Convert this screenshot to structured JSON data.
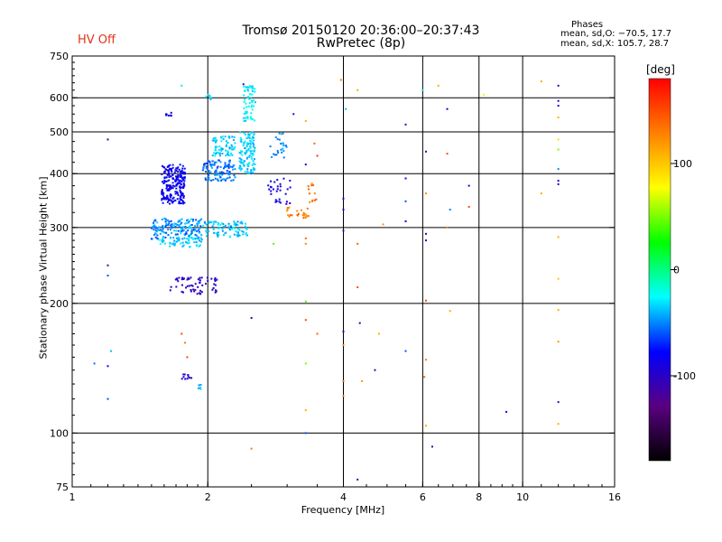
{
  "header": {
    "title_line1": "Tromsø 20150120 20:36:00–20:37:43",
    "title_line2": "RwPretec (8p)",
    "status": "HV Off",
    "status_color": "#e0331a"
  },
  "phase_box": {
    "title": "Phases",
    "line_o": "mean, sd,O: −70.5, 17.7",
    "line_x": "mean, sd,X: 105.7, 28.7"
  },
  "chart_data": {
    "type": "scatter",
    "xlabel": "Frequency [MHz]",
    "ylabel": "Stationary phase Virtual Height [km]",
    "xscale": "log",
    "yscale": "log",
    "xlim": [
      1,
      16
    ],
    "ylim": [
      75,
      750
    ],
    "x_ticks": [
      1,
      2,
      4,
      6,
      8,
      10,
      16
    ],
    "y_ticks": [
      75,
      100,
      200,
      300,
      400,
      500,
      600,
      750
    ],
    "x_grid": [
      2,
      4,
      6,
      8,
      10
    ],
    "y_grid": [
      100,
      200,
      300,
      400,
      500,
      600
    ],
    "colorbar": {
      "unit": "[deg]",
      "range": [
        -180,
        180
      ],
      "ticks": [
        100,
        0,
        -100
      ],
      "colormap": [
        "#000000",
        "#5a0080",
        "#0000ff",
        "#00ffff",
        "#00ff00",
        "#ffff00",
        "#ff8000",
        "#ff0000"
      ]
    },
    "clusters": [
      {
        "x": [
          1.58,
          1.78
        ],
        "y": [
          340,
          420
        ],
        "phase": [
          -95,
          -70
        ],
        "n": 220
      },
      {
        "x": [
          1.5,
          1.95
        ],
        "y": [
          282,
          315
        ],
        "phase": [
          -65,
          -30
        ],
        "n": 160
      },
      {
        "x": [
          1.95,
          2.3
        ],
        "y": [
          385,
          430
        ],
        "phase": [
          -70,
          -40
        ],
        "n": 110
      },
      {
        "x": [
          2.05,
          2.3
        ],
        "y": [
          440,
          490
        ],
        "phase": [
          -45,
          -25
        ],
        "n": 70
      },
      {
        "x": [
          2.35,
          2.55
        ],
        "y": [
          400,
          500
        ],
        "phase": [
          -45,
          -25
        ],
        "n": 120
      },
      {
        "x": [
          2.4,
          2.55
        ],
        "y": [
          530,
          640
        ],
        "phase": [
          -40,
          -20
        ],
        "n": 60
      },
      {
        "x": [
          1.95,
          2.45
        ],
        "y": [
          285,
          310
        ],
        "phase": [
          -50,
          -25
        ],
        "n": 90
      },
      {
        "x": [
          1.55,
          1.95
        ],
        "y": [
          270,
          285
        ],
        "phase": [
          -45,
          -25
        ],
        "n": 60
      },
      {
        "x": [
          1.65,
          2.1
        ],
        "y": [
          210,
          230
        ],
        "phase": [
          -110,
          -90
        ],
        "n": 60
      },
      {
        "x": [
          2.7,
          3.1
        ],
        "y": [
          340,
          390
        ],
        "phase": [
          -100,
          -80
        ],
        "n": 30
      },
      {
        "x": [
          2.75,
          3.0
        ],
        "y": [
          430,
          500
        ],
        "phase": [
          -60,
          -40
        ],
        "n": 25
      },
      {
        "x": [
          3.0,
          3.35
        ],
        "y": [
          315,
          335
        ],
        "phase": [
          120,
          140
        ],
        "n": 25
      },
      {
        "x": [
          3.3,
          3.5
        ],
        "y": [
          340,
          380
        ],
        "phase": [
          125,
          145
        ],
        "n": 12
      },
      {
        "x": [
          1.75,
          1.85
        ],
        "y": [
          133,
          137
        ],
        "phase": [
          -110,
          -90
        ],
        "n": 10
      },
      {
        "x": [
          1.9,
          1.95
        ],
        "y": [
          126,
          130
        ],
        "phase": [
          -50,
          -30
        ],
        "n": 5
      },
      {
        "x": [
          1.6,
          1.7
        ],
        "y": [
          545,
          555
        ],
        "phase": [
          -95,
          -80
        ],
        "n": 8
      },
      {
        "x": [
          1.98,
          2.1
        ],
        "y": [
          590,
          610
        ],
        "phase": [
          -45,
          -25
        ],
        "n": 6
      }
    ],
    "points": [
      {
        "x": 1.2,
        "y": 480,
        "phase": -110
      },
      {
        "x": 1.2,
        "y": 245,
        "phase": -115
      },
      {
        "x": 1.2,
        "y": 232,
        "phase": -60
      },
      {
        "x": 1.22,
        "y": 155,
        "phase": -40
      },
      {
        "x": 1.12,
        "y": 145,
        "phase": -55
      },
      {
        "x": 1.2,
        "y": 143,
        "phase": -90
      },
      {
        "x": 1.2,
        "y": 120,
        "phase": -60
      },
      {
        "x": 1.75,
        "y": 640,
        "phase": -30
      },
      {
        "x": 2.4,
        "y": 645,
        "phase": -100
      },
      {
        "x": 2.5,
        "y": 185,
        "phase": -110
      },
      {
        "x": 2.5,
        "y": 92,
        "phase": 130
      },
      {
        "x": 1.75,
        "y": 170,
        "phase": 150
      },
      {
        "x": 1.78,
        "y": 162,
        "phase": 130
      },
      {
        "x": 1.8,
        "y": 150,
        "phase": 150
      },
      {
        "x": 2.8,
        "y": 275,
        "phase": 40
      },
      {
        "x": 3.1,
        "y": 550,
        "phase": -110
      },
      {
        "x": 3.3,
        "y": 530,
        "phase": 110
      },
      {
        "x": 3.45,
        "y": 470,
        "phase": 140
      },
      {
        "x": 3.5,
        "y": 440,
        "phase": 160
      },
      {
        "x": 3.3,
        "y": 420,
        "phase": -100
      },
      {
        "x": 3.3,
        "y": 283,
        "phase": 140
      },
      {
        "x": 3.3,
        "y": 275,
        "phase": 125
      },
      {
        "x": 3.3,
        "y": 202,
        "phase": 40
      },
      {
        "x": 3.3,
        "y": 183,
        "phase": 150
      },
      {
        "x": 3.5,
        "y": 170,
        "phase": 140
      },
      {
        "x": 3.3,
        "y": 145,
        "phase": 50
      },
      {
        "x": 3.3,
        "y": 113,
        "phase": 110
      },
      {
        "x": 3.3,
        "y": 100,
        "phase": -60
      },
      {
        "x": 3.95,
        "y": 660,
        "phase": 130
      },
      {
        "x": 4.05,
        "y": 565,
        "phase": -40
      },
      {
        "x": 4.3,
        "y": 625,
        "phase": 110
      },
      {
        "x": 4.0,
        "y": 350,
        "phase": -90
      },
      {
        "x": 4.0,
        "y": 330,
        "phase": -80
      },
      {
        "x": 4.0,
        "y": 295,
        "phase": -110
      },
      {
        "x": 4.3,
        "y": 275,
        "phase": 140
      },
      {
        "x": 4.3,
        "y": 218,
        "phase": 150
      },
      {
        "x": 4.0,
        "y": 172,
        "phase": -100
      },
      {
        "x": 4.35,
        "y": 180,
        "phase": -110
      },
      {
        "x": 4.8,
        "y": 170,
        "phase": 110
      },
      {
        "x": 4.0,
        "y": 160,
        "phase": 130
      },
      {
        "x": 4.0,
        "y": 132,
        "phase": 140
      },
      {
        "x": 4.4,
        "y": 132,
        "phase": 120
      },
      {
        "x": 4.7,
        "y": 140,
        "phase": -120
      },
      {
        "x": 4.3,
        "y": 78,
        "phase": -110
      },
      {
        "x": 4.0,
        "y": 122,
        "phase": 130
      },
      {
        "x": 4.9,
        "y": 305,
        "phase": 120
      },
      {
        "x": 5.5,
        "y": 520,
        "phase": -110
      },
      {
        "x": 5.5,
        "y": 390,
        "phase": -90
      },
      {
        "x": 5.5,
        "y": 345,
        "phase": -60
      },
      {
        "x": 5.5,
        "y": 310,
        "phase": -80
      },
      {
        "x": 5.5,
        "y": 155,
        "phase": -60
      },
      {
        "x": 6.0,
        "y": 625,
        "phase": -30
      },
      {
        "x": 6.1,
        "y": 450,
        "phase": -110
      },
      {
        "x": 6.1,
        "y": 360,
        "phase": 120
      },
      {
        "x": 6.1,
        "y": 290,
        "phase": -100
      },
      {
        "x": 6.1,
        "y": 280,
        "phase": -90
      },
      {
        "x": 6.1,
        "y": 203,
        "phase": 150
      },
      {
        "x": 6.1,
        "y": 148,
        "phase": 130
      },
      {
        "x": 6.05,
        "y": 135,
        "phase": 140
      },
      {
        "x": 6.1,
        "y": 104,
        "phase": 110
      },
      {
        "x": 6.3,
        "y": 93,
        "phase": -110
      },
      {
        "x": 6.5,
        "y": 640,
        "phase": 110
      },
      {
        "x": 6.8,
        "y": 565,
        "phase": -90
      },
      {
        "x": 6.8,
        "y": 445,
        "phase": 150
      },
      {
        "x": 6.9,
        "y": 330,
        "phase": -50
      },
      {
        "x": 6.8,
        "y": 300,
        "phase": 130
      },
      {
        "x": 6.9,
        "y": 192,
        "phase": 110
      },
      {
        "x": 7.6,
        "y": 375,
        "phase": -90
      },
      {
        "x": 7.6,
        "y": 335,
        "phase": 150
      },
      {
        "x": 8.2,
        "y": 610,
        "phase": 70
      },
      {
        "x": 9.2,
        "y": 112,
        "phase": -90
      },
      {
        "x": 11.0,
        "y": 655,
        "phase": 110
      },
      {
        "x": 11.0,
        "y": 360,
        "phase": 110
      },
      {
        "x": 12.0,
        "y": 640,
        "phase": -110
      },
      {
        "x": 12.0,
        "y": 590,
        "phase": -90
      },
      {
        "x": 12.0,
        "y": 575,
        "phase": -100
      },
      {
        "x": 12.0,
        "y": 540,
        "phase": 110
      },
      {
        "x": 12.0,
        "y": 480,
        "phase": 90
      },
      {
        "x": 12.0,
        "y": 455,
        "phase": 50
      },
      {
        "x": 12.0,
        "y": 410,
        "phase": -50
      },
      {
        "x": 12.0,
        "y": 385,
        "phase": -90
      },
      {
        "x": 12.0,
        "y": 378,
        "phase": -110
      },
      {
        "x": 12.0,
        "y": 285,
        "phase": 110
      },
      {
        "x": 12.0,
        "y": 228,
        "phase": 100
      },
      {
        "x": 12.0,
        "y": 193,
        "phase": 110
      },
      {
        "x": 12.0,
        "y": 163,
        "phase": 120
      },
      {
        "x": 12.0,
        "y": 118,
        "phase": -110
      },
      {
        "x": 12.0,
        "y": 105,
        "phase": 110
      }
    ]
  }
}
